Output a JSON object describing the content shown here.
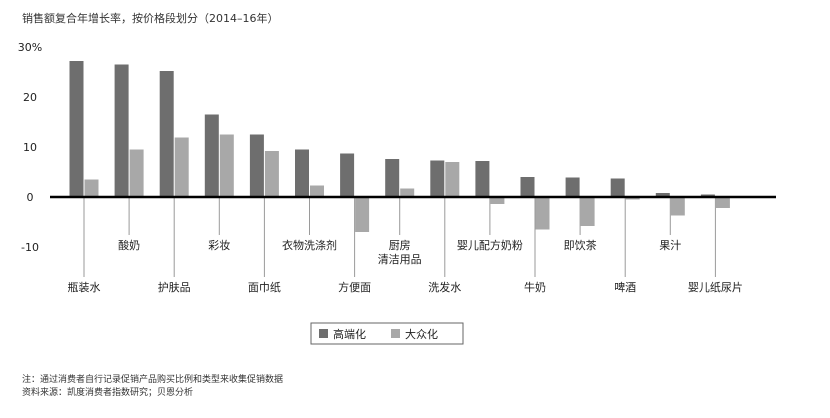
{
  "title": "销售额复合年增长率，按价格段划分（2014–16年）",
  "chart_data": {
    "type": "bar",
    "ylim": [
      -14,
      30
    ],
    "y_ticks": [
      {
        "value": 30,
        "label": "30%"
      },
      {
        "value": 20,
        "label": "20"
      },
      {
        "value": 10,
        "label": "10"
      },
      {
        "value": 0,
        "label": "0"
      },
      {
        "value": -10,
        "label": "-10"
      }
    ],
    "categories": [
      "瓶装水",
      "酸奶",
      "护肤品",
      "彩妆",
      "面巾纸",
      "衣物洗涤剂",
      "方便面",
      "厨房\n清洁用品",
      "洗发水",
      "婴儿配方奶粉",
      "牛奶",
      "即饮茶",
      "啤酒",
      "果汁",
      "婴儿纸尿片"
    ],
    "series": [
      {
        "name": "高端化",
        "color": "#6e6e6e",
        "values": [
          27.2,
          26.5,
          25.2,
          16.5,
          12.5,
          9.5,
          8.7,
          7.6,
          7.3,
          7.2,
          4.0,
          3.9,
          3.7,
          0.8,
          0.5
        ]
      },
      {
        "name": "大众化",
        "color": "#a8a8a8",
        "values": [
          3.5,
          9.5,
          11.9,
          12.5,
          9.2,
          2.3,
          -7.0,
          1.7,
          7.0,
          -1.4,
          -6.5,
          -5.8,
          -0.5,
          -3.7,
          -2.2
        ]
      }
    ],
    "legend_position": "bottom-center",
    "grid": false
  },
  "notes": [
    "注：通过消费者自行记录促销产品购买比例和类型来收集促销数据",
    "资料来源：凯度消费者指数研究；贝恩分析"
  ]
}
